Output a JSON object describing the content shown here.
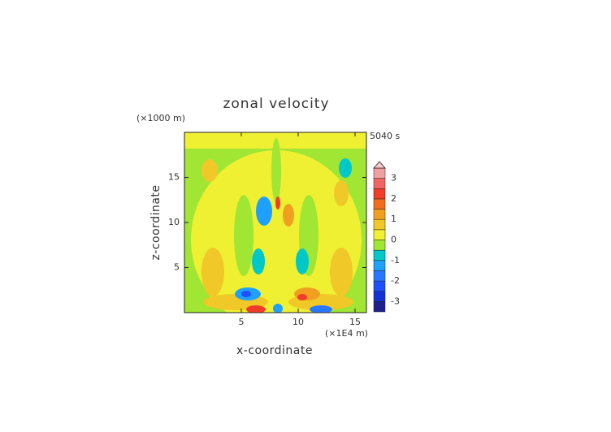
{
  "chart_data": {
    "type": "contour",
    "title": "zonal velocity",
    "x_label": "x-coordinate",
    "y_label": "z-coordinate",
    "x_unit_label": "(×1E4 m)",
    "y_unit_label": "(×1000 m)",
    "time_label": "5040 s",
    "xlim": [
      0,
      16
    ],
    "ylim": [
      0,
      20
    ],
    "xticks": [
      5,
      10,
      15
    ],
    "yticks": [
      5,
      10,
      15
    ],
    "colorbar": {
      "levels": [
        -3.5,
        -3,
        -2.5,
        -2,
        -1.5,
        -1,
        -0.5,
        0,
        0.5,
        1,
        1.5,
        2,
        2.5,
        3,
        3.5
      ],
      "colors": [
        "#1e1e8c",
        "#1432d2",
        "#1e50ff",
        "#2878ff",
        "#1ea0ff",
        "#00c8c8",
        "#a0e632",
        "#f0f032",
        "#f0c828",
        "#f0a01e",
        "#f06e1e",
        "#f03c28",
        "#f06464",
        "#f0a0a0"
      ],
      "extend_color": "#ffc8c8",
      "ticks": [
        -3,
        -2,
        -1,
        0,
        1,
        2,
        3
      ]
    }
  }
}
